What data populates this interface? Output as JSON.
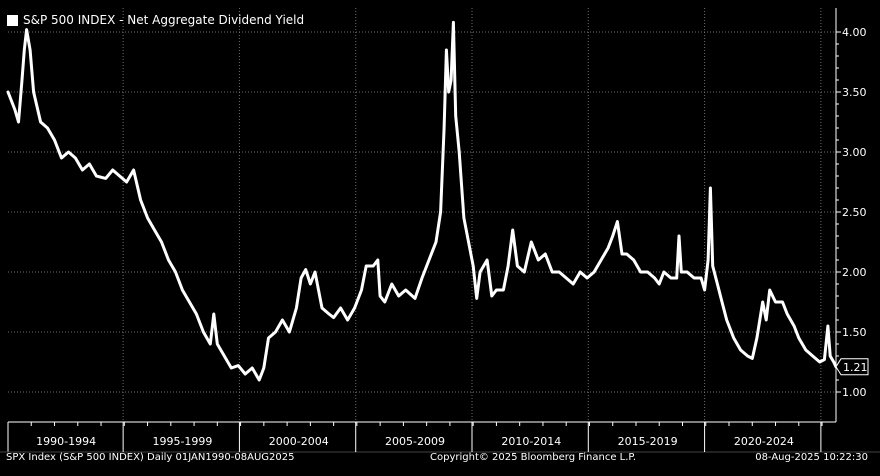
{
  "chart_data": {
    "type": "line",
    "title": "S&P 500 INDEX - Net Aggregate Dividend Yield",
    "series": [
      {
        "name": "S&P 500 INDEX - Net Aggregate Dividend Yield",
        "color": "#ffffff",
        "points": [
          [
            1990.0,
            3.5
          ],
          [
            1990.3,
            3.35
          ],
          [
            1990.45,
            3.25
          ],
          [
            1990.6,
            3.6
          ],
          [
            1990.7,
            3.85
          ],
          [
            1990.8,
            4.02
          ],
          [
            1990.95,
            3.85
          ],
          [
            1991.1,
            3.5
          ],
          [
            1991.4,
            3.25
          ],
          [
            1991.7,
            3.2
          ],
          [
            1992.0,
            3.1
          ],
          [
            1992.3,
            2.95
          ],
          [
            1992.6,
            3.0
          ],
          [
            1992.9,
            2.95
          ],
          [
            1993.2,
            2.85
          ],
          [
            1993.5,
            2.9
          ],
          [
            1993.8,
            2.8
          ],
          [
            1994.2,
            2.78
          ],
          [
            1994.5,
            2.85
          ],
          [
            1994.8,
            2.8
          ],
          [
            1995.1,
            2.75
          ],
          [
            1995.4,
            2.85
          ],
          [
            1995.7,
            2.6
          ],
          [
            1996.0,
            2.45
          ],
          [
            1996.3,
            2.35
          ],
          [
            1996.6,
            2.25
          ],
          [
            1996.9,
            2.1
          ],
          [
            1997.2,
            2.0
          ],
          [
            1997.5,
            1.85
          ],
          [
            1997.8,
            1.75
          ],
          [
            1998.1,
            1.65
          ],
          [
            1998.4,
            1.5
          ],
          [
            1998.7,
            1.4
          ],
          [
            1998.85,
            1.65
          ],
          [
            1999.0,
            1.4
          ],
          [
            1999.3,
            1.3
          ],
          [
            1999.6,
            1.2
          ],
          [
            1999.9,
            1.22
          ],
          [
            2000.2,
            1.15
          ],
          [
            2000.5,
            1.2
          ],
          [
            2000.8,
            1.1
          ],
          [
            2001.0,
            1.2
          ],
          [
            2001.2,
            1.45
          ],
          [
            2001.5,
            1.5
          ],
          [
            2001.8,
            1.6
          ],
          [
            2002.1,
            1.5
          ],
          [
            2002.4,
            1.7
          ],
          [
            2002.6,
            1.95
          ],
          [
            2002.8,
            2.02
          ],
          [
            2003.0,
            1.9
          ],
          [
            2003.2,
            2.0
          ],
          [
            2003.5,
            1.7
          ],
          [
            2003.8,
            1.65
          ],
          [
            2004.0,
            1.62
          ],
          [
            2004.3,
            1.7
          ],
          [
            2004.6,
            1.6
          ],
          [
            2004.9,
            1.7
          ],
          [
            2005.2,
            1.85
          ],
          [
            2005.4,
            2.05
          ],
          [
            2005.7,
            2.05
          ],
          [
            2005.9,
            2.1
          ],
          [
            2006.0,
            1.8
          ],
          [
            2006.2,
            1.75
          ],
          [
            2006.5,
            1.9
          ],
          [
            2006.8,
            1.8
          ],
          [
            2007.1,
            1.85
          ],
          [
            2007.5,
            1.78
          ],
          [
            2007.8,
            1.95
          ],
          [
            2008.1,
            2.1
          ],
          [
            2008.4,
            2.25
          ],
          [
            2008.6,
            2.5
          ],
          [
            2008.75,
            3.2
          ],
          [
            2008.85,
            3.85
          ],
          [
            2008.95,
            3.5
          ],
          [
            2009.05,
            3.6
          ],
          [
            2009.15,
            4.08
          ],
          [
            2009.25,
            3.3
          ],
          [
            2009.4,
            3.0
          ],
          [
            2009.6,
            2.45
          ],
          [
            2009.85,
            2.2
          ],
          [
            2010.0,
            2.05
          ],
          [
            2010.15,
            1.78
          ],
          [
            2010.3,
            2.0
          ],
          [
            2010.6,
            2.1
          ],
          [
            2010.8,
            1.8
          ],
          [
            2011.0,
            1.85
          ],
          [
            2011.3,
            1.85
          ],
          [
            2011.5,
            2.05
          ],
          [
            2011.7,
            2.35
          ],
          [
            2011.9,
            2.05
          ],
          [
            2012.2,
            2.0
          ],
          [
            2012.5,
            2.25
          ],
          [
            2012.8,
            2.1
          ],
          [
            2013.1,
            2.15
          ],
          [
            2013.4,
            2.0
          ],
          [
            2013.7,
            2.0
          ],
          [
            2014.0,
            1.95
          ],
          [
            2014.3,
            1.9
          ],
          [
            2014.6,
            2.0
          ],
          [
            2014.9,
            1.95
          ],
          [
            2015.2,
            2.0
          ],
          [
            2015.5,
            2.1
          ],
          [
            2015.8,
            2.2
          ],
          [
            2016.0,
            2.3
          ],
          [
            2016.2,
            2.42
          ],
          [
            2016.4,
            2.15
          ],
          [
            2016.6,
            2.15
          ],
          [
            2016.9,
            2.1
          ],
          [
            2017.2,
            2.0
          ],
          [
            2017.5,
            2.0
          ],
          [
            2017.8,
            1.95
          ],
          [
            2018.0,
            1.9
          ],
          [
            2018.2,
            2.0
          ],
          [
            2018.5,
            1.95
          ],
          [
            2018.75,
            1.95
          ],
          [
            2018.85,
            2.3
          ],
          [
            2018.95,
            2.0
          ],
          [
            2019.2,
            2.0
          ],
          [
            2019.5,
            1.95
          ],
          [
            2019.8,
            1.95
          ],
          [
            2019.95,
            1.85
          ],
          [
            2020.1,
            2.1
          ],
          [
            2020.2,
            2.7
          ],
          [
            2020.3,
            2.05
          ],
          [
            2020.5,
            1.9
          ],
          [
            2020.7,
            1.75
          ],
          [
            2020.9,
            1.6
          ],
          [
            2021.2,
            1.45
          ],
          [
            2021.5,
            1.35
          ],
          [
            2021.8,
            1.3
          ],
          [
            2022.0,
            1.28
          ],
          [
            2022.2,
            1.45
          ],
          [
            2022.45,
            1.75
          ],
          [
            2022.6,
            1.6
          ],
          [
            2022.75,
            1.85
          ],
          [
            2023.0,
            1.75
          ],
          [
            2023.3,
            1.75
          ],
          [
            2023.5,
            1.65
          ],
          [
            2023.8,
            1.55
          ],
          [
            2024.0,
            1.45
          ],
          [
            2024.3,
            1.35
          ],
          [
            2024.6,
            1.3
          ],
          [
            2024.9,
            1.25
          ],
          [
            2025.1,
            1.27
          ],
          [
            2025.25,
            1.55
          ],
          [
            2025.35,
            1.3
          ],
          [
            2025.5,
            1.25
          ],
          [
            2025.6,
            1.21
          ]
        ]
      }
    ],
    "x_ticks": [
      "1990-1994",
      "1995-1999",
      "2000-2004",
      "2005-2009",
      "2010-2014",
      "2015-2019",
      "2020-2024"
    ],
    "x_range": [
      1990.0,
      2025.6
    ],
    "y_ticks": [
      "1.00",
      "1.50",
      "2.00",
      "2.50",
      "3.00",
      "3.50",
      "4.00"
    ],
    "ylim": [
      0.75,
      4.2
    ],
    "last_value": "1.21",
    "grid": true,
    "legend_position": "top-left",
    "background": "#000000",
    "line_color": "#ffffff",
    "grid_color": "#6e6e6e"
  },
  "footer": {
    "left": "SPX Index (S&P 500 INDEX)  Daily 01JAN1990-08AUG2025",
    "center": "Copyright© 2025 Bloomberg Finance L.P.",
    "right": "08-Aug-2025 10:22:30"
  }
}
